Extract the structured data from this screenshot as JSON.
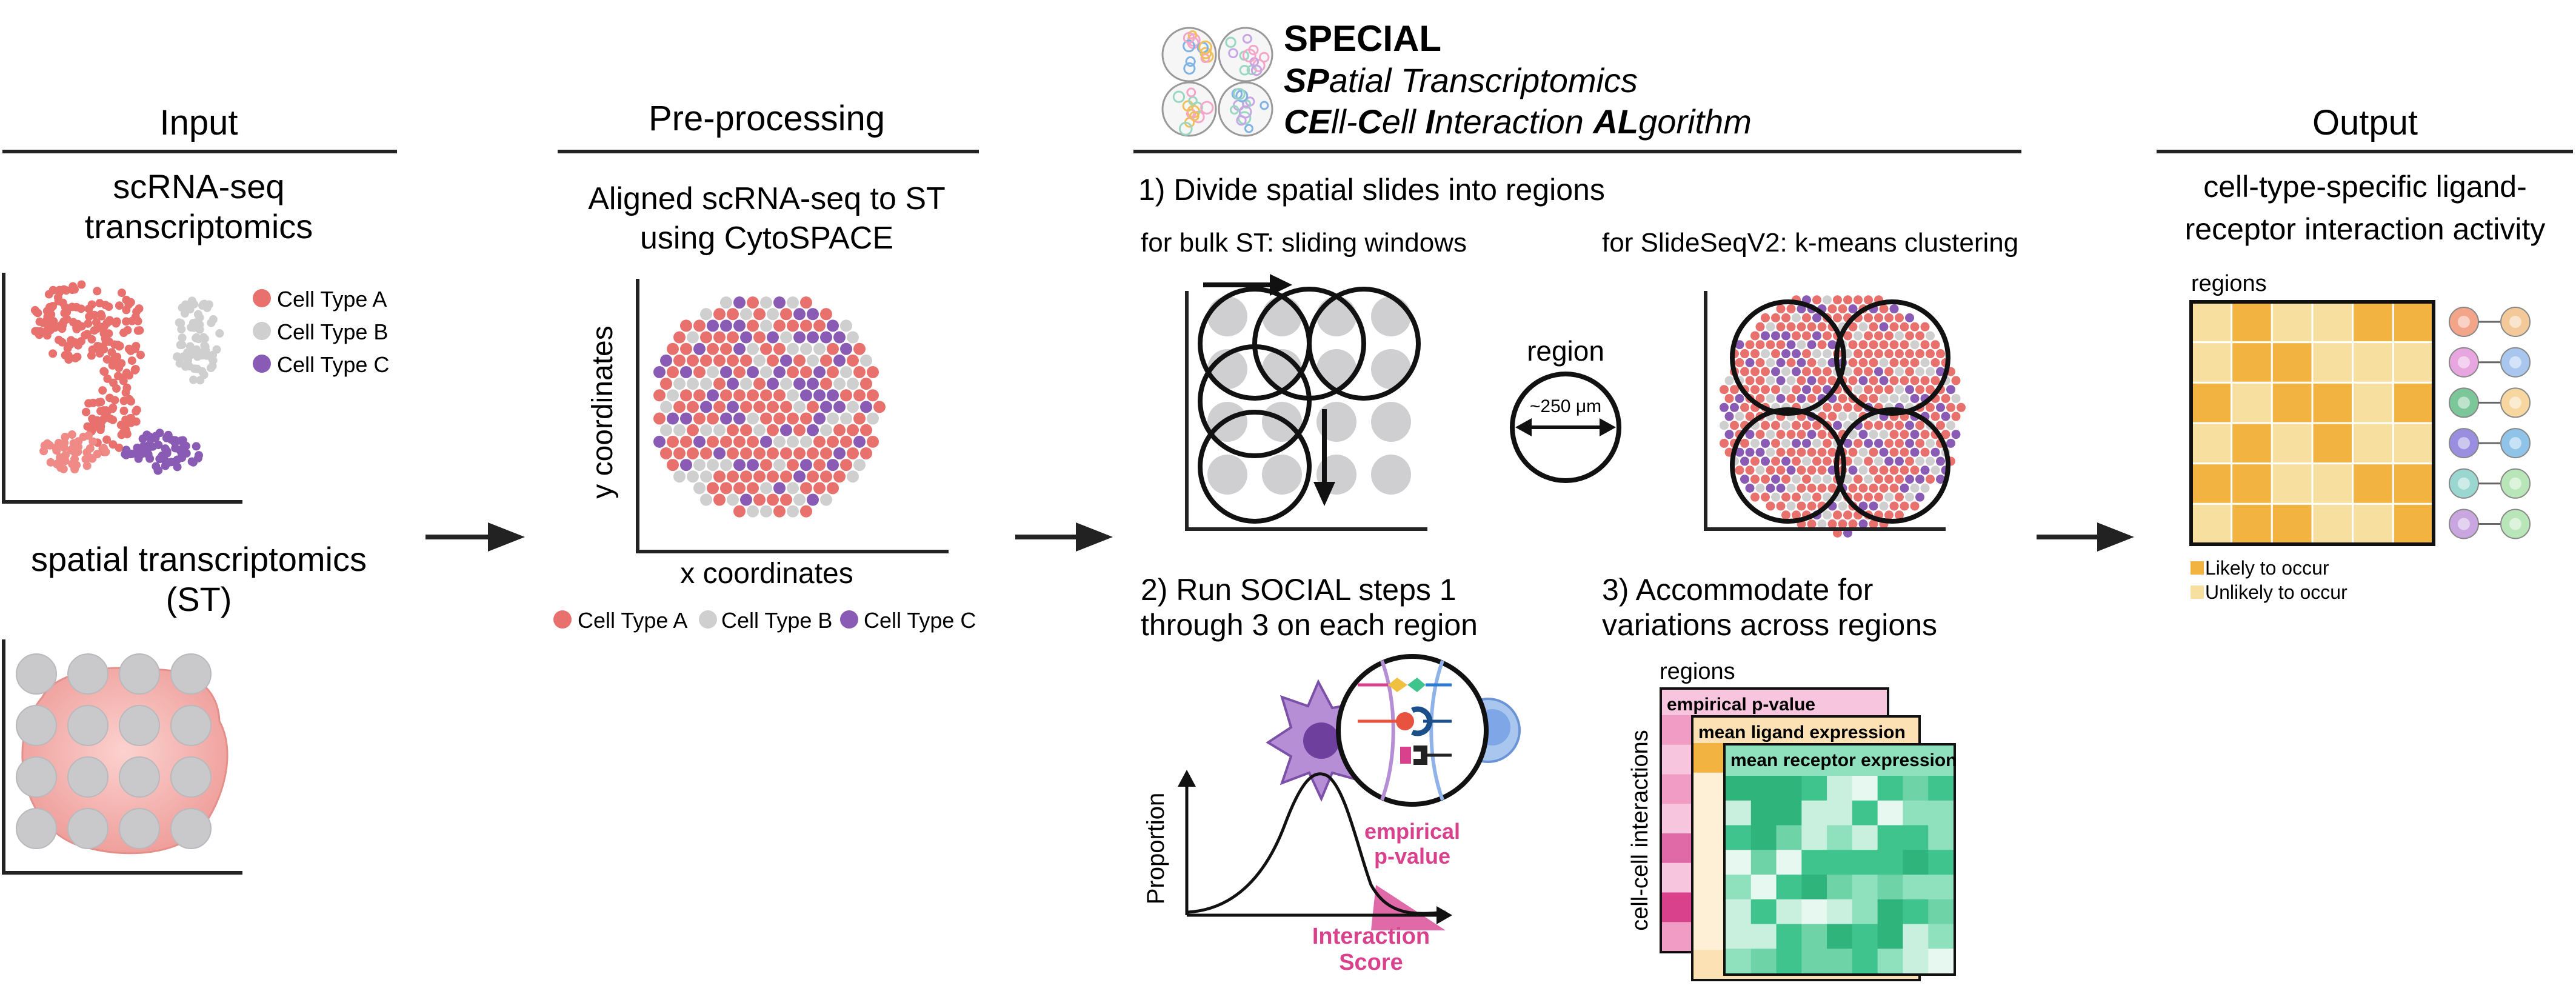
{
  "colors": {
    "cell_type_a": "#e8716e",
    "cell_type_b": "#cfcfcf",
    "cell_type_c": "#8a5bb4",
    "likely": "#f2b340",
    "unlikely": "#f7dfa0",
    "empirical_p": "#d9418c",
    "ligand": "#f6c777",
    "receptor": "#3ec48c"
  },
  "input": {
    "header": "Input",
    "scrna_title_1": "scRNA-seq",
    "scrna_title_2": "transcriptomics",
    "legend": [
      "Cell Type A",
      "Cell Type B",
      "Cell Type C"
    ],
    "st_title_1": "spatial transcriptomics",
    "st_title_2": "(ST)"
  },
  "preprocessing": {
    "header": "Pre-processing",
    "title_1": "Aligned scRNA-seq to ST",
    "title_2": "using CytoSPACE",
    "ylabel": "y coordinates",
    "xlabel": "x coordinates",
    "legend": [
      "Cell Type A",
      "Cell Type B",
      "Cell Type C"
    ]
  },
  "special": {
    "title": "SPECIAL",
    "line1": {
      "bold": "SP",
      "rest": "atial Transcriptomics"
    },
    "line2": [
      {
        "text": "C",
        "bold": true
      },
      {
        "text": "E",
        "bold": true
      },
      {
        "text": "ll-",
        "bold": false
      },
      {
        "text": "C",
        "bold": true
      },
      {
        "text": "ell ",
        "bold": false
      },
      {
        "text": "I",
        "bold": true
      },
      {
        "text": "nteraction ",
        "bold": false
      },
      {
        "text": "AL",
        "bold": true
      },
      {
        "text": "gorithm",
        "bold": false
      }
    ],
    "step1_title": "1) Divide spatial slides into regions",
    "bulk_label": "for bulk ST: sliding windows",
    "slideseq_label": "for SlideSeqV2: k-means clustering",
    "region_label": "region",
    "region_size": "~250 μm",
    "step2_title_1": "2) Run SOCIAL steps 1",
    "step2_title_2": "through 3 on each region",
    "proportion_label": "Proportion",
    "empirical_label_1": "empirical",
    "empirical_label_2": "p-value",
    "interaction_label_1": "Interaction",
    "interaction_label_2": "Score",
    "step3_title_1": "3) Accommodate for",
    "step3_title_2": "variations across regions",
    "regions_label": "regions",
    "interactions_label": "cell-cell interactions",
    "card_titles": [
      "empirical p-value",
      "mean ligand expression",
      "mean receptor expression"
    ]
  },
  "output": {
    "header": "Output",
    "title_1": "cell-type-specific ligand-",
    "title_2": "receptor interaction activity",
    "regions_label": "regions",
    "legend_likely": "Likely to occur",
    "legend_unlikely": "Unlikely to occur",
    "grid": [
      [
        0,
        1,
        0,
        0,
        1,
        1
      ],
      [
        0,
        1,
        1,
        0,
        0,
        0
      ],
      [
        1,
        0,
        1,
        1,
        0,
        1
      ],
      [
        0,
        1,
        0,
        1,
        0,
        0
      ],
      [
        1,
        1,
        0,
        0,
        1,
        1
      ],
      [
        0,
        1,
        1,
        0,
        0,
        1
      ]
    ]
  }
}
